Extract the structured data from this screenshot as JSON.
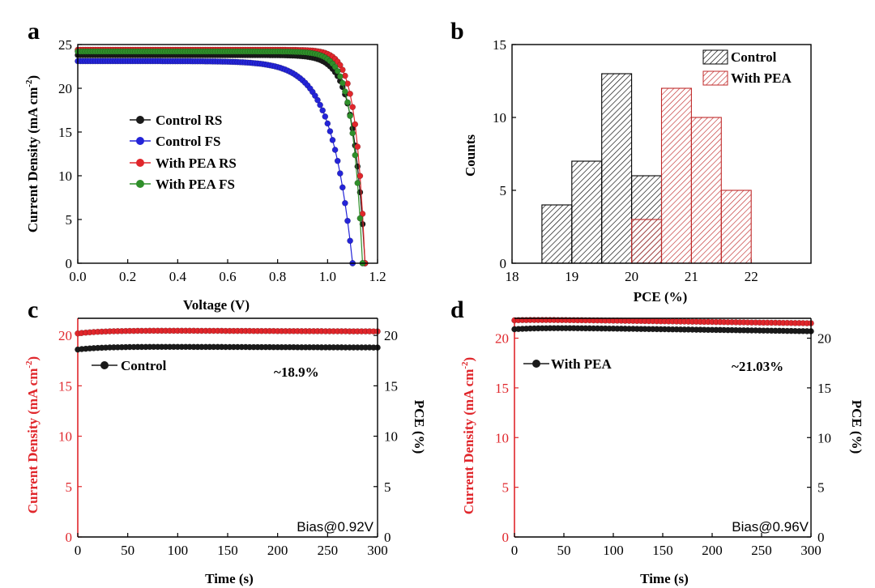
{
  "colors": {
    "black": "#1a1a1a",
    "blue": "#2424d8",
    "red": "#e0262b",
    "green": "#2f8f2a",
    "red_axis": "#e0262b",
    "hist_black": "#000000",
    "hist_red": "#c02a2a"
  },
  "chart_data": [
    {
      "id": "a",
      "panel_label": "a",
      "type": "line",
      "xlabel": "Voltage (V)",
      "ylabel": "Current Density (mA cm",
      "ylabel_sup": "-2",
      "ylabel_end": ")",
      "xlim": [
        0.0,
        1.2
      ],
      "ylim": [
        0,
        25
      ],
      "xticks": [
        "0.0",
        "0.2",
        "0.4",
        "0.6",
        "0.8",
        "1.0",
        "1.2"
      ],
      "yticks": [
        "0",
        "5",
        "10",
        "15",
        "20",
        "25"
      ],
      "legend_position": "center-left",
      "series": [
        {
          "name": "Control RS",
          "color_key": "black",
          "jsc": 23.8,
          "voc": 1.15,
          "curv": 0.048
        },
        {
          "name": "Control FS",
          "color_key": "blue",
          "jsc": 23.1,
          "voc": 1.1,
          "curv": 0.085
        },
        {
          "name": "With PEA RS",
          "color_key": "red",
          "jsc": 24.4,
          "voc": 1.15,
          "curv": 0.038
        },
        {
          "name": "With PEA FS",
          "color_key": "green",
          "jsc": 24.2,
          "voc": 1.14,
          "curv": 0.042
        }
      ]
    },
    {
      "id": "b",
      "panel_label": "b",
      "type": "bar",
      "xlabel": "PCE (%)",
      "ylabel": "Counts",
      "xlim": [
        18,
        23
      ],
      "ylim": [
        0,
        15
      ],
      "xticks": [
        "18",
        "19",
        "20",
        "21",
        "22"
      ],
      "yticks": [
        "0",
        "5",
        "10",
        "15"
      ],
      "legend_position": "top-right",
      "series": [
        {
          "name": "Control",
          "color_key": "hist_black",
          "bins": [
            {
              "from": 18.5,
              "to": 19.0,
              "count": 4
            },
            {
              "from": 19.0,
              "to": 19.5,
              "count": 7
            },
            {
              "from": 19.5,
              "to": 20.0,
              "count": 13
            },
            {
              "from": 20.0,
              "to": 20.5,
              "count": 6
            }
          ]
        },
        {
          "name": "With PEA",
          "color_key": "hist_red",
          "bins": [
            {
              "from": 20.0,
              "to": 20.5,
              "count": 3
            },
            {
              "from": 20.5,
              "to": 21.0,
              "count": 12
            },
            {
              "from": 21.0,
              "to": 21.5,
              "count": 10
            },
            {
              "from": 21.5,
              "to": 22.0,
              "count": 5
            }
          ]
        }
      ]
    },
    {
      "id": "c",
      "panel_label": "c",
      "type": "scatter",
      "xlabel": "Time (s)",
      "ylabel_left": "Current Density (mA cm",
      "ylabel_sup": "-2",
      "ylabel_end": ")",
      "ylabel_right": "PCE (%)",
      "xlim": [
        0,
        300
      ],
      "ylim": [
        0,
        21.7
      ],
      "xticks": [
        "0",
        "50",
        "100",
        "150",
        "200",
        "250",
        "300"
      ],
      "yticks_left": [
        "0",
        "5",
        "10",
        "15",
        "20"
      ],
      "yticks_right": [
        "0",
        "5",
        "10",
        "15",
        "20"
      ],
      "legend": "Control",
      "annotation": "~18.9%",
      "bias": "Bias@0.92V",
      "series": [
        {
          "role": "current_density",
          "color_key": "red",
          "start": 20.2,
          "plateau": 20.5,
          "end": 20.4
        },
        {
          "role": "pce",
          "color_key": "black",
          "start": 18.6,
          "plateau": 18.9,
          "end": 18.8
        }
      ]
    },
    {
      "id": "d",
      "panel_label": "d",
      "type": "scatter",
      "xlabel": "Time (s)",
      "ylabel_left": "Current Density (mA cm",
      "ylabel_sup": "-2",
      "ylabel_end": ")",
      "ylabel_right": "PCE (%)",
      "xlim": [
        0,
        300
      ],
      "ylim": [
        0,
        22
      ],
      "xticks": [
        "0",
        "50",
        "100",
        "150",
        "200",
        "250",
        "300"
      ],
      "yticks_left": [
        "0",
        "5",
        "10",
        "15",
        "20"
      ],
      "yticks_right": [
        "0",
        "5",
        "10",
        "15",
        "20"
      ],
      "legend": "With PEA",
      "annotation": "~21.03%",
      "bias": "Bias@0.96V",
      "series": [
        {
          "role": "current_density",
          "color_key": "red",
          "start": 21.8,
          "plateau": 21.9,
          "end": 21.5
        },
        {
          "role": "pce",
          "color_key": "black",
          "start": 20.9,
          "plateau": 21.1,
          "end": 20.7
        }
      ]
    }
  ]
}
